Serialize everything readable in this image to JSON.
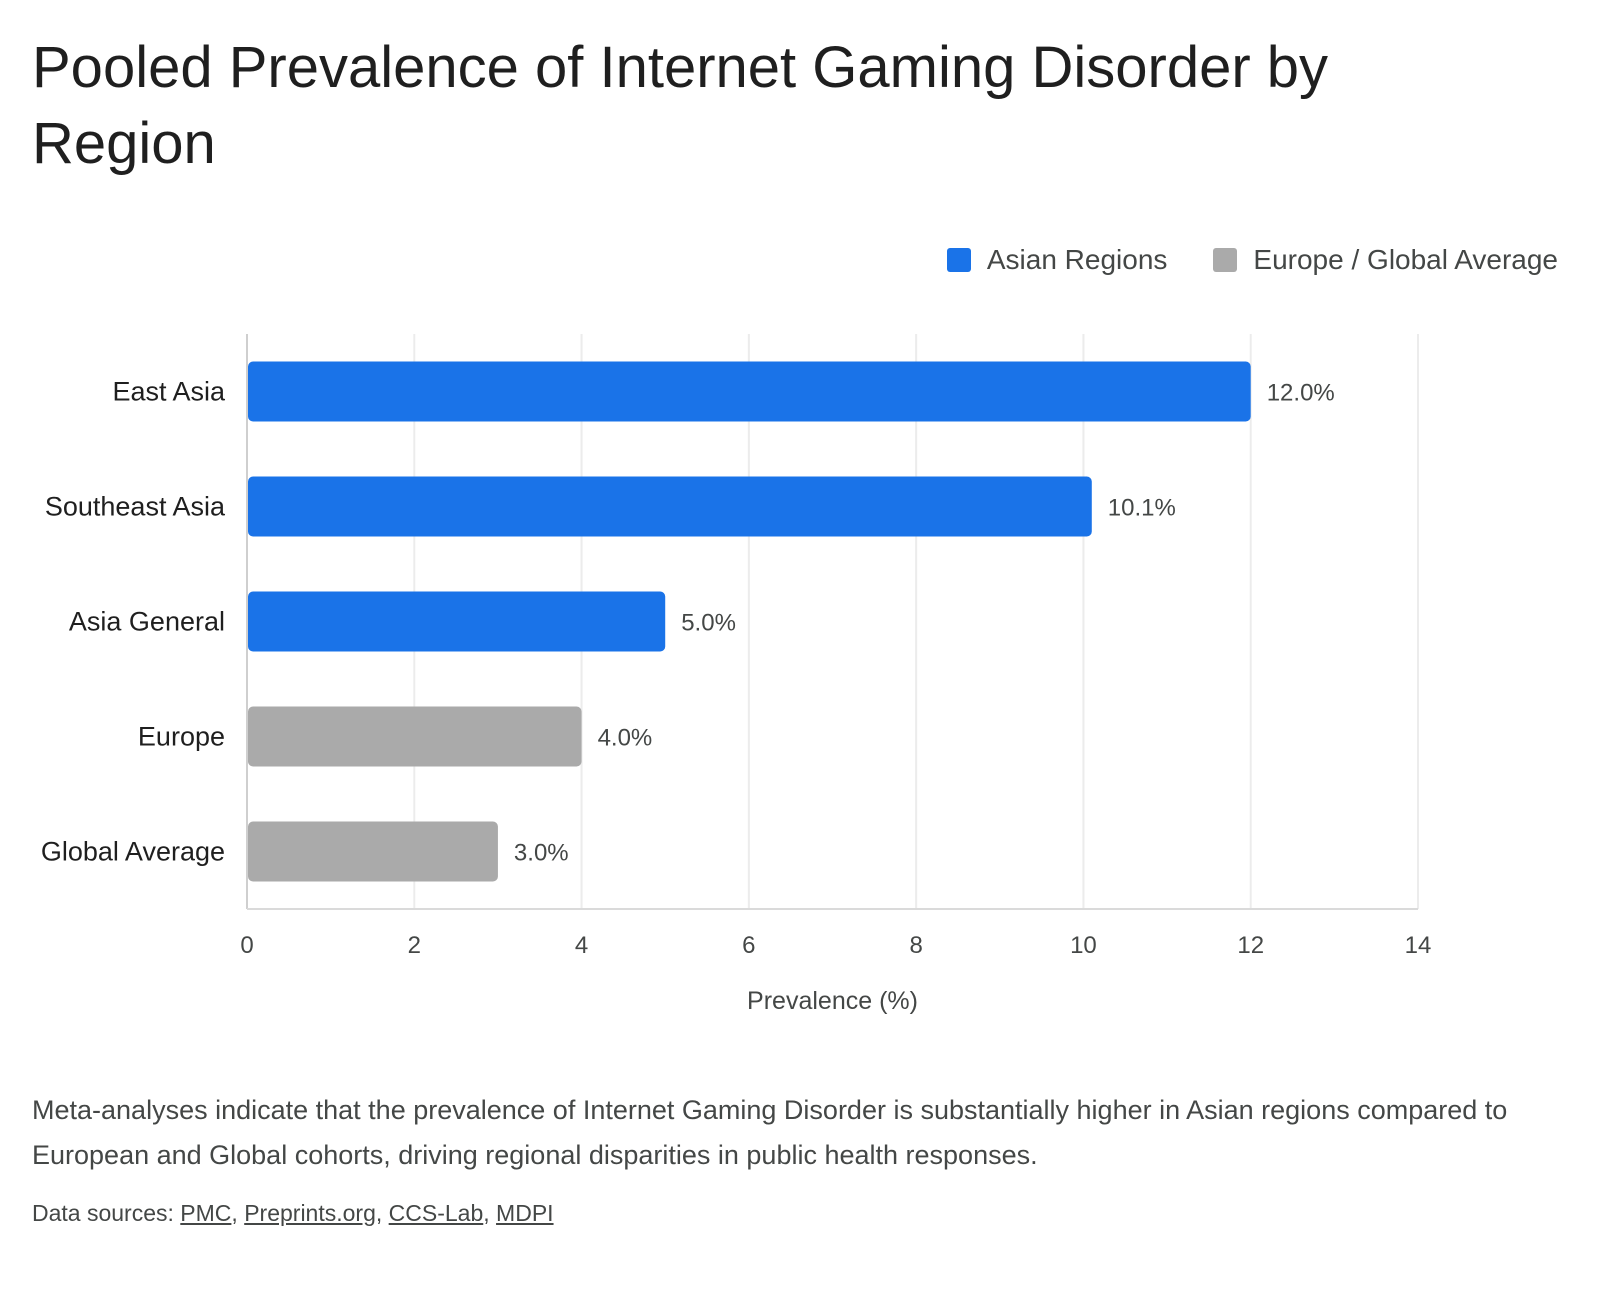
{
  "chart_data": {
    "type": "bar",
    "orientation": "horizontal",
    "title": "Pooled Prevalence of Internet Gaming Disorder by Region",
    "xlabel": "Prevalence (%)",
    "ylabel": "",
    "xlim": [
      0,
      14
    ],
    "xticks": [
      0,
      2,
      4,
      6,
      8,
      10,
      12,
      14
    ],
    "grid": true,
    "legend_position": "top-right",
    "categories": [
      "East Asia",
      "Southeast Asia",
      "Asia General",
      "Europe",
      "Global Average"
    ],
    "values": [
      12.0,
      10.1,
      5.0,
      4.0,
      3.0
    ],
    "value_labels": [
      "12.0%",
      "10.1%",
      "5.0%",
      "4.0%",
      "3.0%"
    ],
    "groups": [
      "Asian Regions",
      "Asian Regions",
      "Asian Regions",
      "Europe / Global Average",
      "Europe / Global Average"
    ],
    "legend": [
      {
        "name": "Asian Regions",
        "color": "#1a73e8"
      },
      {
        "name": "Europe / Global Average",
        "color": "#aaaaaa"
      }
    ]
  },
  "description": "Meta-analyses indicate that the prevalence of Internet Gaming Disorder is substantially higher in Asian regions compared to European and Global cohorts, driving regional disparities in public health responses.",
  "sources": {
    "prefix": "Data sources:",
    "links": [
      "PMC",
      "Preprints.org",
      "CCS-Lab",
      "MDPI"
    ]
  }
}
